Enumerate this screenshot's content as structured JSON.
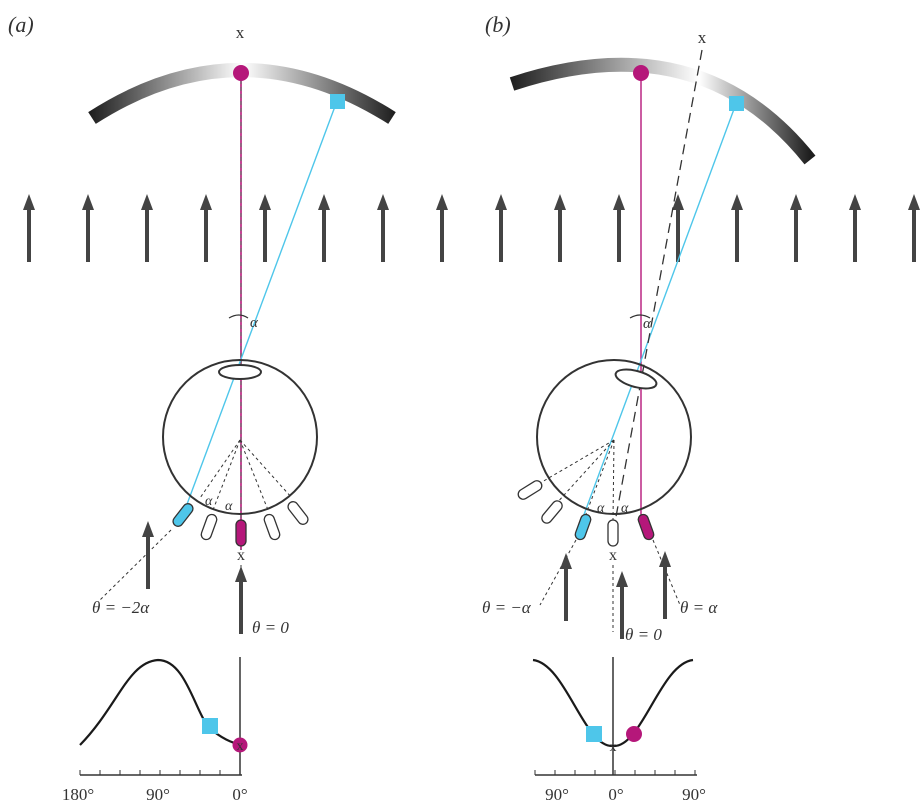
{
  "panels": {
    "a": {
      "label": "(a)",
      "x_mark": "x",
      "angle_label": "α",
      "theta_left": "θ = −2α",
      "theta_center": "θ = 0",
      "ticks": [
        "180°",
        "90°",
        "0°"
      ]
    },
    "b": {
      "label": "(b)",
      "x_mark": "x",
      "angle_label": "α",
      "theta_left": "θ = −α",
      "theta_center": "θ = 0",
      "theta_right": "θ = α",
      "ticks": [
        "90°",
        "0°",
        "90°"
      ]
    }
  },
  "colors": {
    "magenta": "#b5177a",
    "cyan": "#4ec6ea",
    "arrow": "#444444",
    "outline": "#333333"
  }
}
